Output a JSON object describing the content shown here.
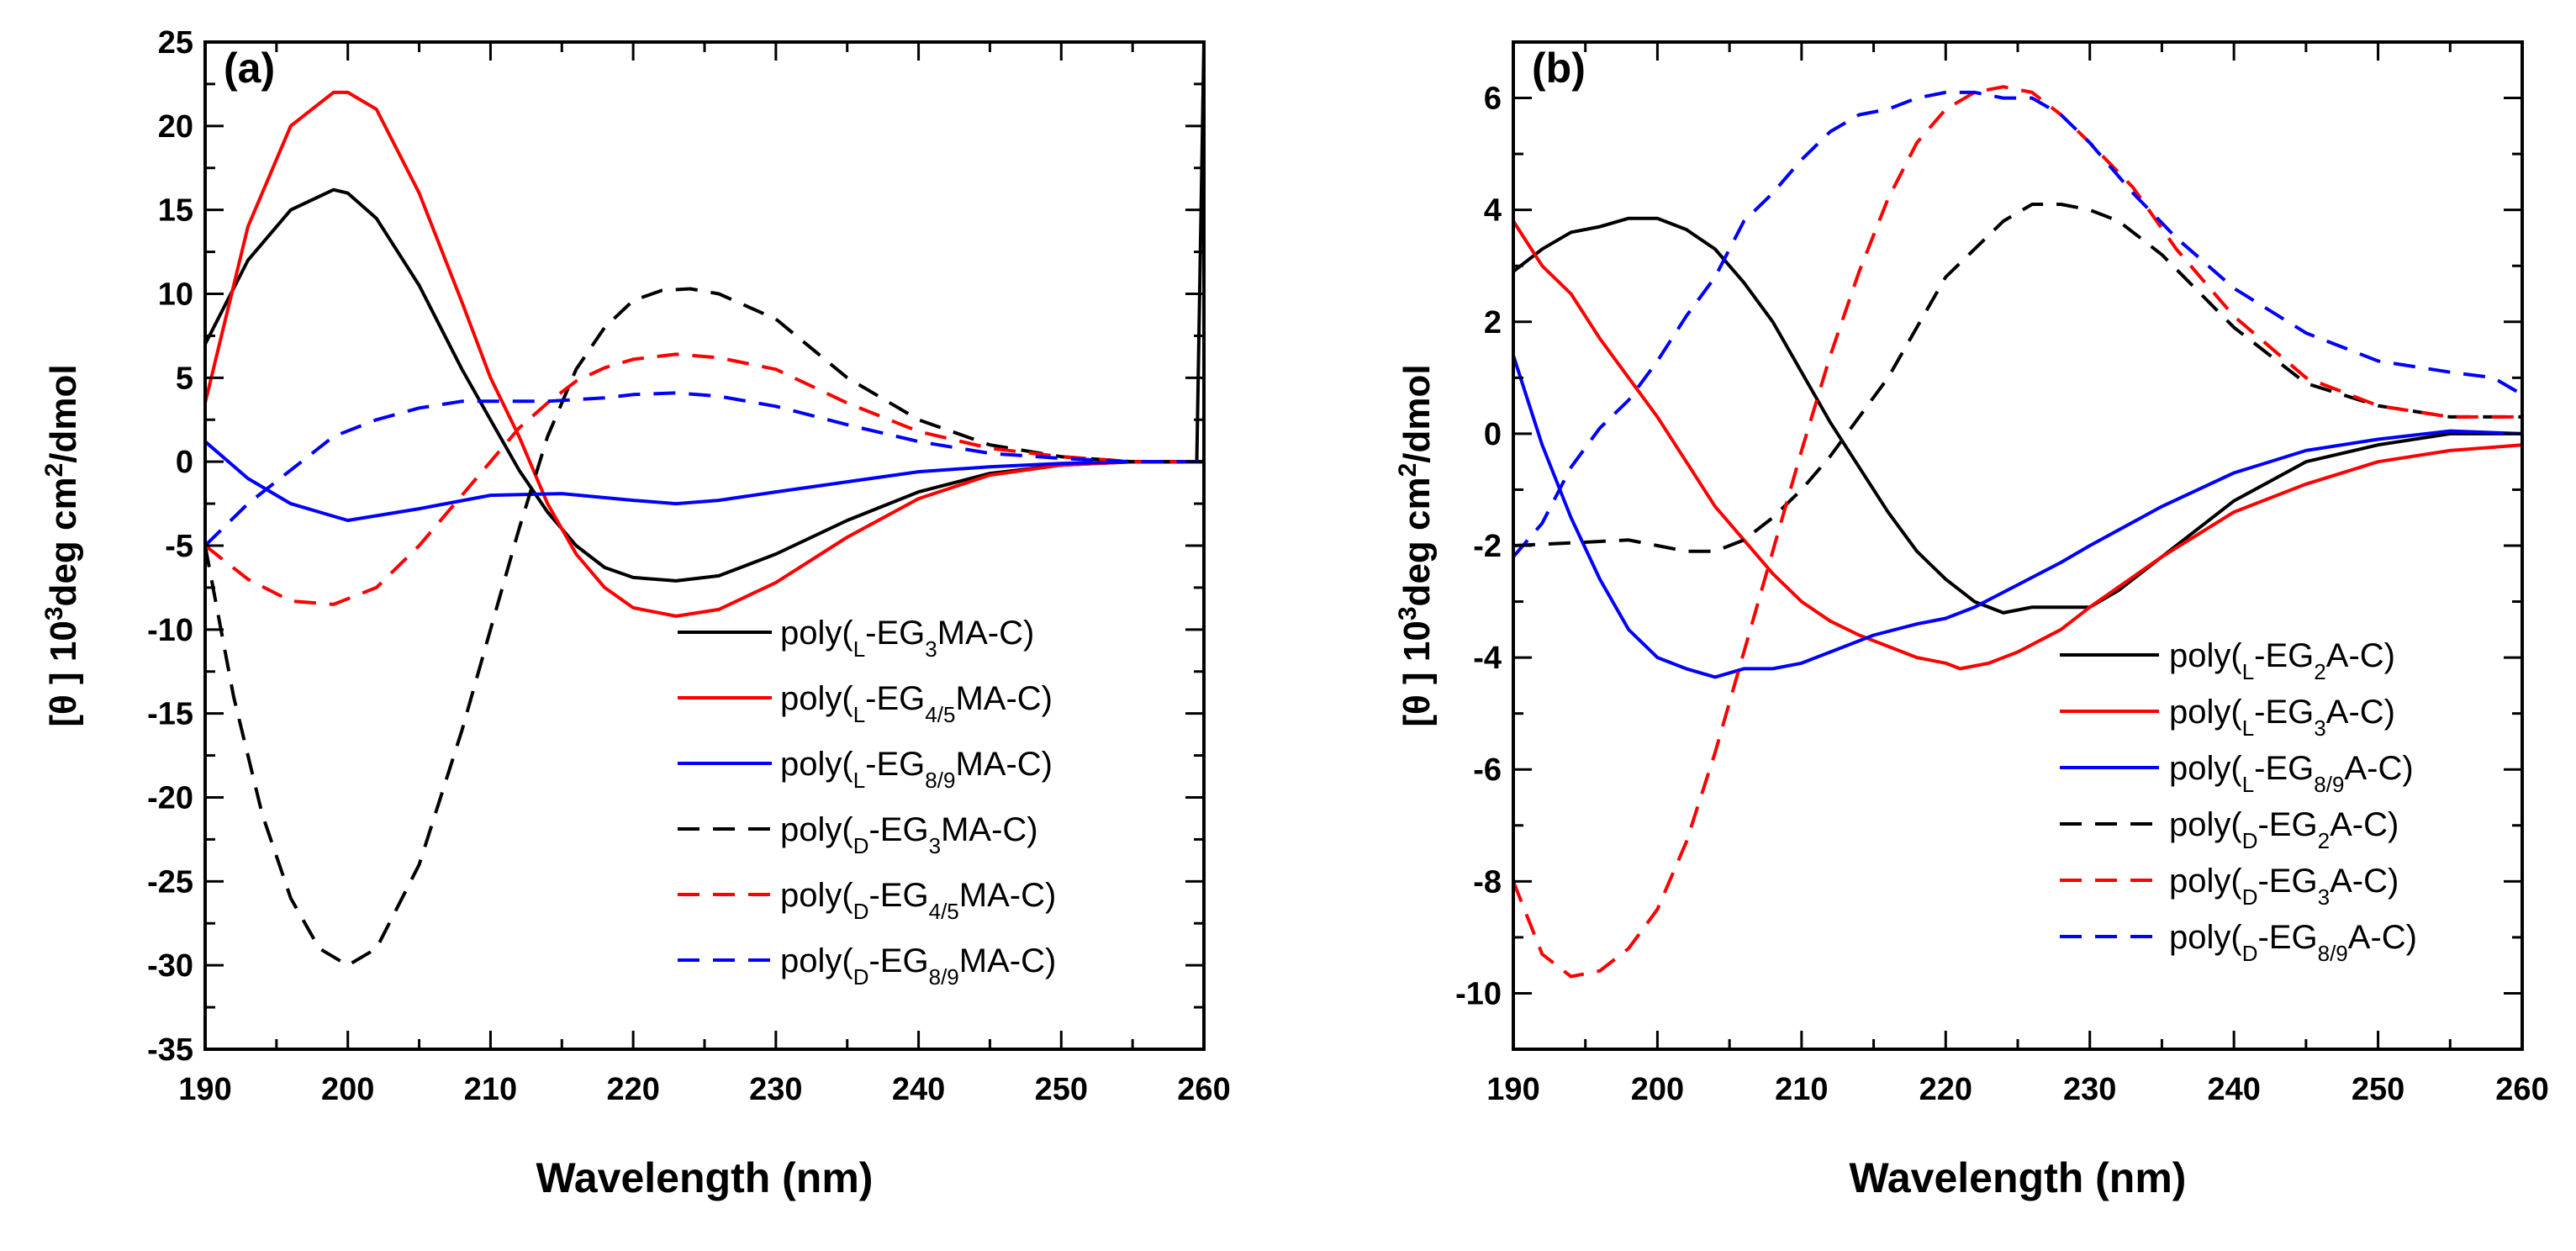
{
  "chart_data": [
    {
      "type": "line",
      "panel_label": "(a)",
      "xlabel": "Wavelength (nm)",
      "ylabel": "[θ ] 10³deg cm²/dmol",
      "ylabel_parts": {
        "main": "[θ ] 10",
        "sup1": "3",
        "mid": "deg cm",
        "sup2": "2",
        "end": "/dmol"
      },
      "xlim": [
        190,
        260
      ],
      "ylim": [
        -35,
        25
      ],
      "xticks": [
        190,
        200,
        210,
        220,
        230,
        240,
        250,
        260
      ],
      "yticks": [
        -35,
        -30,
        -25,
        -20,
        -15,
        -10,
        -5,
        0,
        5,
        10,
        15,
        20,
        25
      ],
      "legend_position": "bottom-right",
      "series": [
        {
          "name": "poly(L-EG3MA-C)",
          "legend": {
            "pre": "poly(",
            "sub1": "L",
            "mid": "-EG",
            "sub2": "3",
            "post": "MA-C)"
          },
          "color": "#000000",
          "dash": "solid",
          "x": [
            190,
            193,
            196,
            199,
            200,
            202,
            205,
            208,
            210,
            212,
            214,
            216,
            218,
            220,
            223,
            226,
            230,
            235,
            240,
            245,
            250,
            255,
            259.5,
            260
          ],
          "y": [
            7,
            12,
            15,
            16.2,
            16,
            14.5,
            10.5,
            5.5,
            2.5,
            -0.5,
            -3,
            -5,
            -6.3,
            -6.9,
            -7.1,
            -6.8,
            -5.5,
            -3.5,
            -1.8,
            -0.7,
            -0.2,
            0,
            0,
            25
          ]
        },
        {
          "name": "poly(L-EG4/5MA-C)",
          "legend": {
            "pre": "poly(",
            "sub1": "L",
            "mid": "-EG",
            "sub2": "4/5",
            "post": "MA-C)"
          },
          "color": "#ff0000",
          "dash": "solid",
          "x": [
            190,
            193,
            196,
            199,
            200,
            202,
            205,
            208,
            210,
            212,
            214,
            216,
            218,
            220,
            223,
            226,
            230,
            235,
            240,
            245,
            250,
            255,
            260
          ],
          "y": [
            3.5,
            14,
            20,
            22,
            22,
            21,
            16,
            9.5,
            5,
            1.5,
            -2.5,
            -5.5,
            -7.5,
            -8.7,
            -9.2,
            -8.8,
            -7.2,
            -4.5,
            -2.2,
            -0.8,
            -0.2,
            0,
            0
          ]
        },
        {
          "name": "poly(L-EG8/9MA-C)",
          "legend": {
            "pre": "poly(",
            "sub1": "L",
            "mid": "-EG",
            "sub2": "8/9",
            "post": "MA-C)"
          },
          "color": "#0000ff",
          "dash": "solid",
          "x": [
            190,
            193,
            196,
            200,
            205,
            210,
            215,
            220,
            223,
            226,
            230,
            235,
            240,
            245,
            250,
            255,
            260
          ],
          "y": [
            1.2,
            -1,
            -2.5,
            -3.5,
            -2.8,
            -2,
            -1.9,
            -2.3,
            -2.5,
            -2.3,
            -1.8,
            -1.2,
            -0.6,
            -0.3,
            -0.1,
            0,
            0
          ]
        },
        {
          "name": "poly(D-EG3MA-C)",
          "legend": {
            "pre": "poly(",
            "sub1": "D",
            "mid": "-EG",
            "sub2": "3",
            "post": "MA-C)"
          },
          "color": "#000000",
          "dash": "dashed",
          "x": [
            190,
            192,
            194,
            196,
            198,
            200,
            202,
            205,
            208,
            210,
            212,
            214,
            216,
            218,
            220,
            222,
            224,
            226,
            230,
            235,
            240,
            245,
            250,
            255,
            260
          ],
          "y": [
            -5,
            -14,
            -21,
            -26,
            -29,
            -30,
            -29,
            -24,
            -16,
            -10,
            -4,
            1.5,
            5.5,
            8,
            9.6,
            10.2,
            10.3,
            10,
            8.5,
            5,
            2.5,
            1,
            0.3,
            0,
            0
          ]
        },
        {
          "name": "poly(D-EG4/5MA-C)",
          "legend": {
            "pre": "poly(",
            "sub1": "D",
            "mid": "-EG",
            "sub2": "4/5",
            "post": "MA-C)"
          },
          "color": "#ff0000",
          "dash": "dashed",
          "x": [
            190,
            193,
            196,
            199,
            202,
            205,
            208,
            210,
            212,
            214,
            216,
            218,
            220,
            223,
            226,
            230,
            235,
            240,
            245,
            250,
            255,
            260
          ],
          "y": [
            -5,
            -7,
            -8.3,
            -8.5,
            -7.5,
            -5,
            -2,
            0,
            2,
            3.5,
            4.8,
            5.6,
            6.1,
            6.4,
            6.2,
            5.5,
            3.5,
            1.8,
            0.8,
            0.3,
            0,
            0
          ]
        },
        {
          "name": "poly(D-EG8/9MA-C)",
          "legend": {
            "pre": "poly(",
            "sub1": "D",
            "mid": "-EG",
            "sub2": "8/9",
            "post": "MA-C)"
          },
          "color": "#0000ff",
          "dash": "dashed",
          "x": [
            190,
            193,
            196,
            199,
            202,
            205,
            208,
            210,
            214,
            218,
            220,
            223,
            226,
            230,
            235,
            240,
            245,
            250,
            255,
            260
          ],
          "y": [
            -5,
            -2.5,
            -0.5,
            1.5,
            2.5,
            3.2,
            3.6,
            3.6,
            3.6,
            3.8,
            4,
            4.1,
            3.9,
            3.3,
            2.2,
            1.2,
            0.5,
            0.2,
            0,
            0
          ]
        }
      ]
    },
    {
      "type": "line",
      "panel_label": "(b)",
      "xlabel": "Wavelength (nm)",
      "ylabel": "[θ ] 10³deg cm²/dmol",
      "ylabel_parts": {
        "main": "[θ ] 10",
        "sup1": "3",
        "mid": "deg cm",
        "sup2": "2",
        "end": "/dmol"
      },
      "xlim": [
        190,
        260
      ],
      "ylim": [
        -11,
        7
      ],
      "xticks": [
        190,
        200,
        210,
        220,
        230,
        240,
        250,
        260
      ],
      "yticks": [
        -10,
        -8,
        -6,
        -4,
        -2,
        0,
        2,
        4,
        6
      ],
      "legend_position": "bottom-right",
      "series": [
        {
          "name": "poly(L-EG2A-C)",
          "legend": {
            "pre": "poly(",
            "sub1": "L",
            "mid": "-EG",
            "sub2": "2",
            "post": "A-C)"
          },
          "color": "#000000",
          "dash": "solid",
          "x": [
            190,
            192,
            194,
            196,
            198,
            200,
            202,
            204,
            206,
            208,
            210,
            212,
            214,
            216,
            218,
            220,
            222,
            224,
            226,
            228,
            230,
            232,
            235,
            240,
            245,
            250,
            255,
            260
          ],
          "y": [
            2.9,
            3.3,
            3.6,
            3.7,
            3.85,
            3.85,
            3.65,
            3.3,
            2.7,
            2,
            1.1,
            0.2,
            -0.6,
            -1.4,
            -2.1,
            -2.6,
            -3,
            -3.2,
            -3.1,
            -3.1,
            -3.1,
            -2.8,
            -2.2,
            -1.2,
            -0.5,
            -0.2,
            0,
            0
          ]
        },
        {
          "name": "poly(L-EG3A-C)",
          "legend": {
            "pre": "poly(",
            "sub1": "L",
            "mid": "-EG",
            "sub2": "3",
            "post": "A-C)"
          },
          "color": "#ff0000",
          "dash": "solid",
          "x": [
            190,
            192,
            194,
            196,
            198,
            200,
            202,
            204,
            206,
            208,
            210,
            212,
            214,
            216,
            218,
            220,
            221,
            223,
            225,
            228,
            230,
            235,
            240,
            245,
            250,
            255,
            260
          ],
          "y": [
            3.8,
            3,
            2.5,
            1.7,
            1,
            0.3,
            -0.5,
            -1.3,
            -1.9,
            -2.5,
            -3,
            -3.35,
            -3.6,
            -3.8,
            -4,
            -4.1,
            -4.2,
            -4.1,
            -3.9,
            -3.5,
            -3.1,
            -2.2,
            -1.4,
            -0.9,
            -0.5,
            -0.3,
            -0.2
          ]
        },
        {
          "name": "poly(L-EG8/9A-C)",
          "legend": {
            "pre": "poly(",
            "sub1": "L",
            "mid": "-EG",
            "sub2": "8/9",
            "post": "A-C)"
          },
          "color": "#0000ff",
          "dash": "solid",
          "x": [
            190,
            192,
            194,
            196,
            198,
            200,
            202,
            204,
            206,
            208,
            210,
            212,
            215,
            218,
            220,
            222,
            225,
            228,
            230,
            235,
            240,
            245,
            250,
            255,
            260
          ],
          "y": [
            1.4,
            -0.2,
            -1.5,
            -2.6,
            -3.5,
            -4,
            -4.2,
            -4.35,
            -4.2,
            -4.2,
            -4.1,
            -3.9,
            -3.6,
            -3.4,
            -3.3,
            -3.1,
            -2.7,
            -2.3,
            -2,
            -1.3,
            -0.7,
            -0.3,
            -0.1,
            0.05,
            0
          ]
        },
        {
          "name": "poly(D-EG2A-C)",
          "legend": {
            "pre": "poly(",
            "sub1": "D",
            "mid": "-EG",
            "sub2": "2",
            "post": "A-C)"
          },
          "color": "#000000",
          "dash": "dashed",
          "x": [
            190,
            194,
            198,
            200,
            202,
            204,
            206,
            208,
            210,
            212,
            214,
            216,
            218,
            220,
            222,
            224,
            226,
            228,
            230,
            232,
            235,
            240,
            245,
            250,
            255,
            260
          ],
          "y": [
            -2,
            -1.95,
            -1.9,
            -2,
            -2.1,
            -2.1,
            -1.9,
            -1.5,
            -1,
            -0.4,
            0.3,
            1,
            1.9,
            2.8,
            3.3,
            3.8,
            4.1,
            4.1,
            4,
            3.8,
            3.2,
            1.9,
            0.9,
            0.5,
            0.3,
            0.3
          ]
        },
        {
          "name": "poly(D-EG3A-C)",
          "legend": {
            "pre": "poly(",
            "sub1": "D",
            "mid": "-EG",
            "sub2": "3",
            "post": "A-C)"
          },
          "color": "#ff0000",
          "dash": "dashed",
          "x": [
            190,
            192,
            194,
            196,
            198,
            200,
            202,
            204,
            206,
            208,
            210,
            212,
            214,
            216,
            218,
            220,
            222,
            224,
            226,
            228,
            230,
            233,
            236,
            240,
            245,
            250,
            255,
            260
          ],
          "y": [
            -8,
            -9.3,
            -9.7,
            -9.6,
            -9.2,
            -8.5,
            -7.3,
            -5.7,
            -3.9,
            -2.1,
            -0.3,
            1.4,
            2.9,
            4.2,
            5.2,
            5.8,
            6.1,
            6.2,
            6.1,
            5.7,
            5.2,
            4.4,
            3.3,
            2.1,
            1,
            0.5,
            0.3,
            0.3
          ]
        },
        {
          "name": "poly(D-EG8/9A-C)",
          "legend": {
            "pre": "poly(",
            "sub1": "D",
            "mid": "-EG",
            "sub2": "8/9",
            "post": "A-C)"
          },
          "color": "#0000ff",
          "dash": "dashed",
          "x": [
            190,
            192,
            194,
            196,
            198,
            200,
            202,
            204,
            206,
            208,
            210,
            212,
            214,
            216,
            218,
            220,
            222,
            224,
            226,
            228,
            230,
            233,
            236,
            240,
            245,
            250,
            255,
            258,
            260
          ],
          "y": [
            -2.2,
            -1.6,
            -0.6,
            0.1,
            0.6,
            1.3,
            2.1,
            2.8,
            3.8,
            4.3,
            4.9,
            5.4,
            5.7,
            5.8,
            6,
            6.1,
            6.1,
            6,
            6,
            5.7,
            5.2,
            4.3,
            3.5,
            2.6,
            1.8,
            1.3,
            1.1,
            1,
            0.7
          ]
        }
      ]
    }
  ]
}
